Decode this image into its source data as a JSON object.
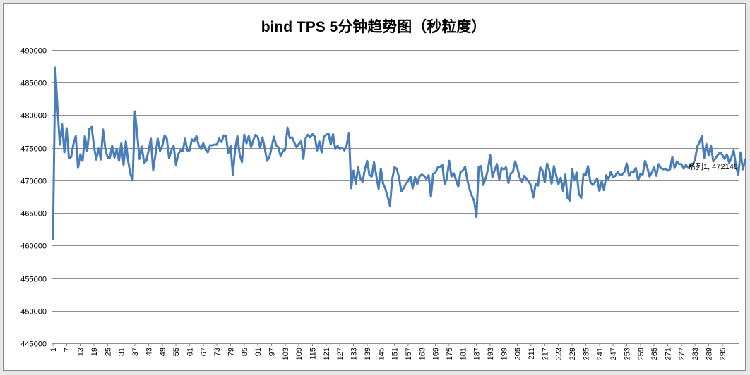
{
  "chart_data": {
    "type": "line",
    "title": "bind TPS 5分钟趋势图（秒粒度）",
    "xlabel": "",
    "ylabel": "",
    "ylim": [
      445000,
      490000
    ],
    "ytick_step": 5000,
    "x_tick_labels": [
      "1",
      "7",
      "13",
      "19",
      "25",
      "31",
      "37",
      "43",
      "49",
      "55",
      "61",
      "67",
      "73",
      "79",
      "85",
      "91",
      "97",
      "103",
      "109",
      "115",
      "121",
      "127",
      "133",
      "139",
      "145",
      "151",
      "157",
      "163",
      "169",
      "175",
      "181",
      "187",
      "193",
      "199",
      "205",
      "211",
      "217",
      "223",
      "229",
      "235",
      "241",
      "247",
      "253",
      "259",
      "265",
      "271",
      "277",
      "283",
      "289",
      "295"
    ],
    "x_range": [
      1,
      300
    ],
    "grid": true,
    "legend": "none",
    "line_color": "#4a7ebb",
    "data_label": "系列1, 472148",
    "series": [
      {
        "values": [
          461000,
          487300,
          481000,
          475500,
          478600,
          474300,
          478000,
          473400,
          473600,
          475600,
          476800,
          471900,
          474000,
          473000,
          476800,
          474500,
          477900,
          478200,
          475200,
          473200,
          474900,
          473200,
          477800,
          474800,
          473500,
          473500,
          475300,
          473500,
          474800,
          473000,
          475700,
          472400,
          476000,
          473000,
          471000,
          470000,
          480600,
          477000,
          473300,
          475200,
          472700,
          473000,
          474600,
          476400,
          471600,
          473900,
          476400,
          474500,
          475300,
          476900,
          476400,
          473400,
          474600,
          475300,
          472400,
          474000,
          474600,
          474500,
          476400,
          474600,
          474600,
          476300,
          476000,
          476800,
          475400,
          474800,
          475700,
          474700,
          474300,
          475400,
          475400,
          475500,
          475500,
          476400,
          475900,
          476900,
          476800,
          474200,
          475300,
          470900,
          474800,
          476800,
          474000,
          472800,
          477000,
          475700,
          476800,
          475100,
          476200,
          477000,
          476600,
          475000,
          476600,
          475000,
          473000,
          473500,
          475000,
          476700,
          475400,
          475100,
          473700,
          474500,
          474700,
          478100,
          476500,
          476600,
          475800,
          475100,
          475600,
          476000,
          473300,
          476500,
          477000,
          476600,
          477100,
          476700,
          474600,
          476000,
          474300,
          476700,
          477000,
          477200,
          475500,
          477100,
          474800,
          475300,
          474800,
          475000,
          474600,
          475400,
          477300,
          468800,
          471500,
          469500,
          472000,
          470300,
          469800,
          471700,
          473000,
          470800,
          470600,
          472800,
          470800,
          468700,
          471800,
          469500,
          468700,
          467500,
          466100,
          470200,
          472000,
          471800,
          470400,
          468300,
          468800,
          469500,
          469900,
          470600,
          468800,
          470500,
          469400,
          470600,
          470900,
          470700,
          470200,
          470800,
          467500,
          471000,
          471200,
          472000,
          472100,
          472400,
          469400,
          470300,
          473000,
          470600,
          471100,
          470100,
          469000,
          471300,
          471500,
          472100,
          470000,
          468600,
          467600,
          466800,
          464400,
          472100,
          472200,
          469300,
          470300,
          471600,
          473900,
          470500,
          471600,
          472500,
          470100,
          471900,
          471700,
          472000,
          469600,
          471000,
          471300,
          472900,
          471800,
          470400,
          469800,
          470700,
          470200,
          469800,
          469200,
          467400,
          469500,
          469200,
          472000,
          471500,
          469700,
          472600,
          471500,
          469500,
          472200,
          470800,
          469400,
          470400,
          468400,
          470900,
          467300,
          466900,
          471700,
          470000,
          471200,
          467900,
          467300,
          471000,
          470800,
          472200,
          469800,
          469300,
          469700,
          470300,
          468400,
          469900,
          468500,
          470800,
          470200,
          471300,
          470500,
          470700,
          471300,
          470800,
          470900,
          471300,
          472600,
          470700,
          471300,
          471200,
          471900,
          470000,
          471000,
          470900,
          473000,
          472000,
          470600,
          471200,
          472000,
          470700,
          472500,
          471900,
          471700,
          471800,
          471500,
          471700,
          473600,
          471900,
          472900,
          472500,
          472500,
          471800,
          472400,
          471900,
          472400,
          472400,
          473200,
          475200,
          475900,
          476800,
          473400,
          475600,
          473800,
          475300,
          472900,
          473400,
          473900,
          474300,
          473900,
          473300,
          474000,
          472700,
          473500,
          474600,
          472100,
          470900,
          474300,
          471700,
          473100,
          473700,
          472700,
          470300,
          472148
        ]
      }
    ]
  }
}
